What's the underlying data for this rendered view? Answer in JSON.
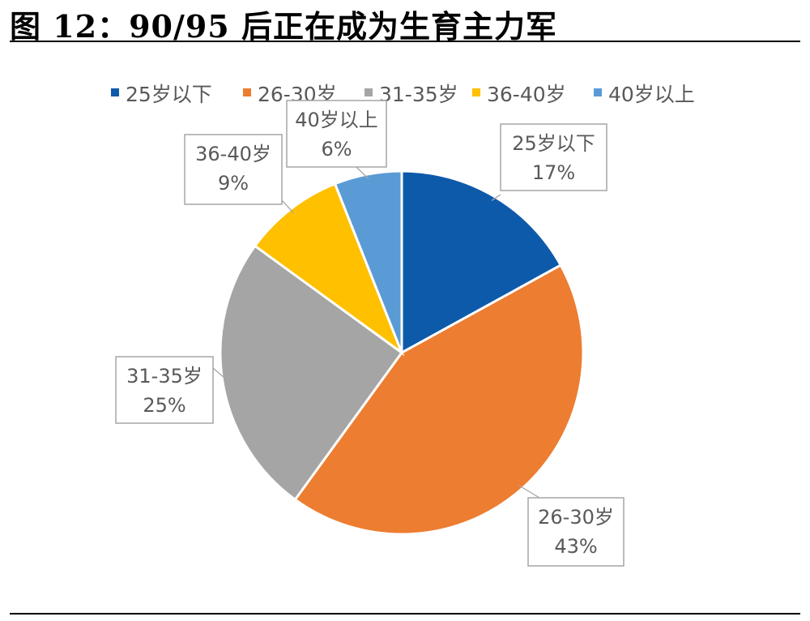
{
  "figure": {
    "title": "图 12：90/95 后正在成为生育主力军"
  },
  "chart_data": {
    "type": "pie",
    "categories": [
      "25岁以下",
      "26-30岁",
      "31-35岁",
      "36-40岁",
      "40岁以上"
    ],
    "values": [
      17,
      43,
      25,
      9,
      6
    ],
    "labels": [
      "17%",
      "43%",
      "25%",
      "9%",
      "6%"
    ],
    "colors": [
      "#0E5AAA",
      "#ED7D31",
      "#A5A5A5",
      "#FFC000",
      "#5B9BD5"
    ],
    "legend_position": "top"
  }
}
